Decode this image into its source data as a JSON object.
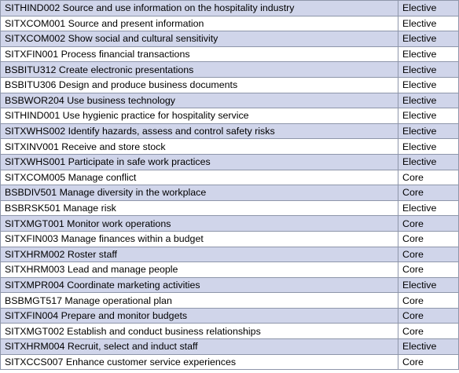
{
  "colors": {
    "shaded_row": "#d0d5ea",
    "plain_row": "#ffffff",
    "border": "#8e96aa"
  },
  "rows": [
    {
      "unit": "SITHIND002 Source and use information on the hospitality industry",
      "type": "Elective",
      "shaded": true
    },
    {
      "unit": "SITXCOM001 Source and present information",
      "type": "Elective",
      "shaded": false
    },
    {
      "unit": "SITXCOM002 Show social and cultural sensitivity",
      "type": "Elective",
      "shaded": true
    },
    {
      "unit": "SITXFIN001 Process financial transactions",
      "type": "Elective",
      "shaded": false
    },
    {
      "unit": "BSBITU312 Create electronic presentations",
      "type": "Elective",
      "shaded": true
    },
    {
      "unit": "BSBITU306 Design and produce business documents",
      "type": "Elective",
      "shaded": false
    },
    {
      "unit": "BSBWOR204 Use business technology",
      "type": "Elective",
      "shaded": true
    },
    {
      "unit": "SITHIND001 Use hygienic practice for hospitality service",
      "type": "Elective",
      "shaded": false
    },
    {
      "unit": "SITXWHS002 Identify hazards, assess and control safety risks",
      "type": "Elective",
      "shaded": true
    },
    {
      "unit": "SITXINV001 Receive and store stock",
      "type": "Elective",
      "shaded": false
    },
    {
      "unit": "SITXWHS001 Participate in safe work practices",
      "type": "Elective",
      "shaded": true
    },
    {
      "unit": "SITXCOM005 Manage conflict",
      "type": "Core",
      "shaded": false
    },
    {
      "unit": "BSBDIV501 Manage diversity in the workplace",
      "type": "Core",
      "shaded": true
    },
    {
      "unit": "BSBRSK501 Manage risk",
      "type": "Elective",
      "shaded": false
    },
    {
      "unit": "SITXMGT001 Monitor work operations",
      "type": "Core",
      "shaded": true
    },
    {
      "unit": "SITXFIN003 Manage finances within a budget",
      "type": "Core",
      "shaded": false
    },
    {
      "unit": "SITXHRM002 Roster staff",
      "type": "Core",
      "shaded": true
    },
    {
      "unit": "SITXHRM003 Lead and manage people",
      "type": "Core",
      "shaded": false
    },
    {
      "unit": "SITXMPR004 Coordinate marketing activities",
      "type": "Elective",
      "shaded": true
    },
    {
      "unit": "BSBMGT517 Manage operational plan",
      "type": "Core",
      "shaded": false
    },
    {
      "unit": "SITXFIN004 Prepare and monitor budgets",
      "type": "Core",
      "shaded": true
    },
    {
      "unit": "SITXMGT002 Establish and conduct business relationships",
      "type": "Core",
      "shaded": false
    },
    {
      "unit": "SITXHRM004 Recruit, select and induct staff",
      "type": "Elective",
      "shaded": true
    },
    {
      "unit": "SITXCCS007 Enhance customer service experiences",
      "type": "Core",
      "shaded": false
    }
  ]
}
